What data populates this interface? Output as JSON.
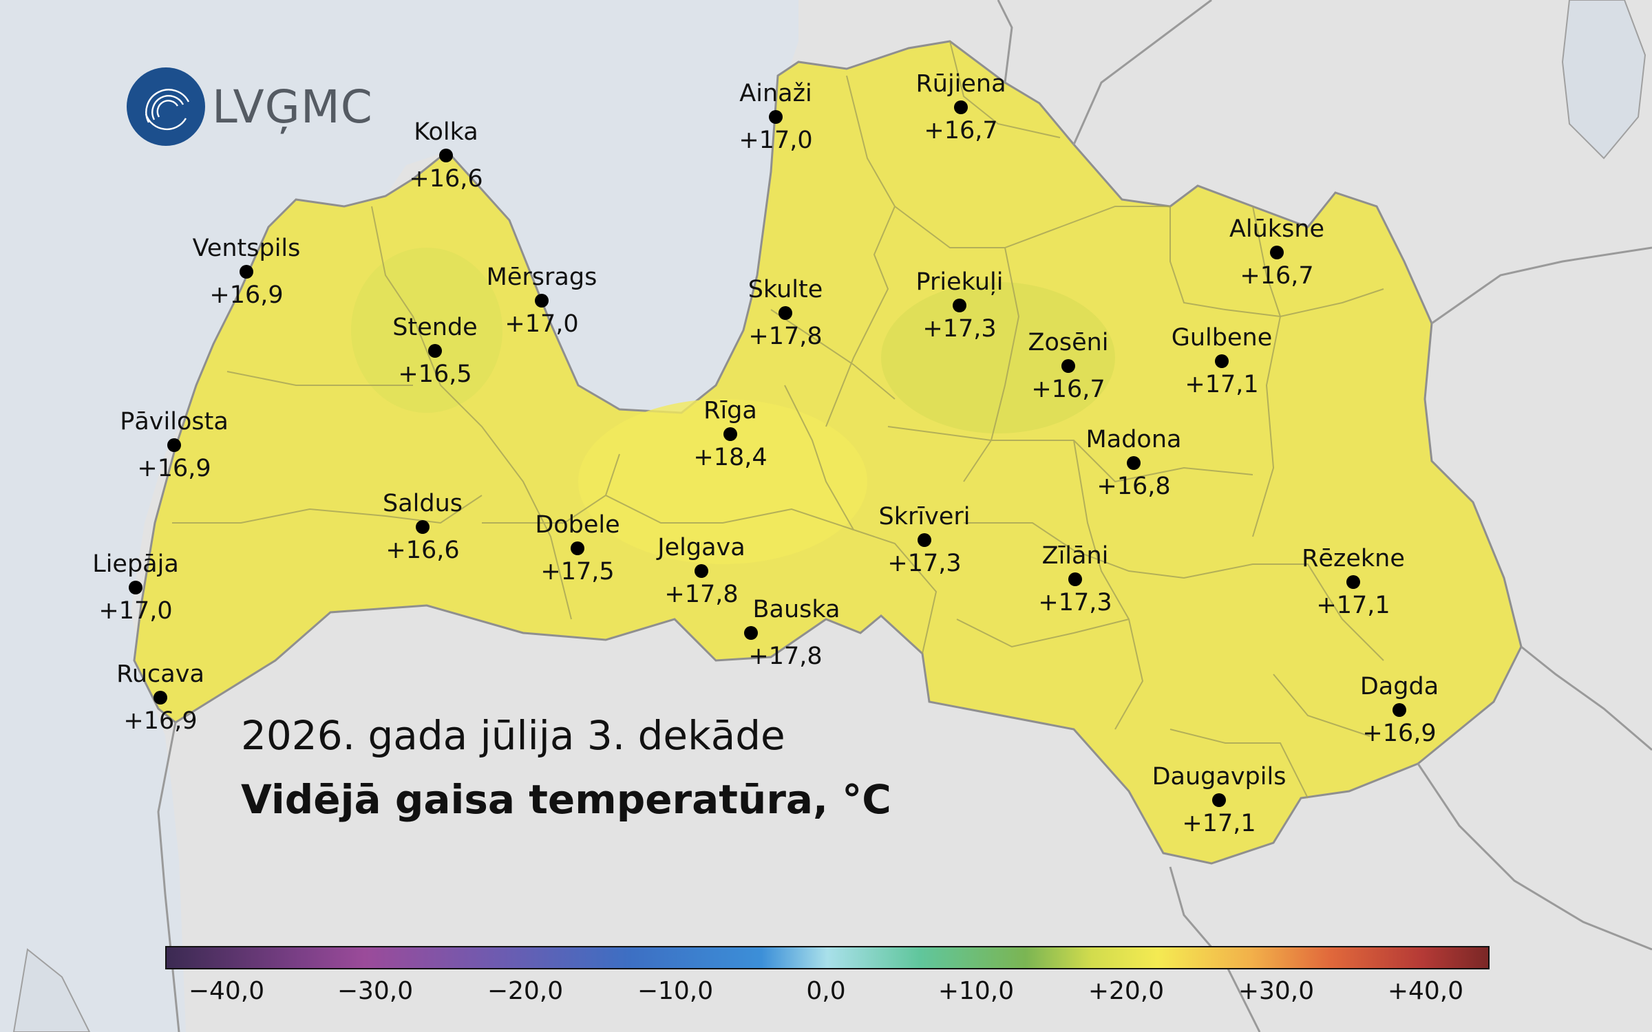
{
  "logo": {
    "text": "LVĢMC"
  },
  "map": {
    "date_text": "2026. gada jūlija 3. dekāde",
    "title": "Vidējā gaisa temperatūra, °C",
    "colors": {
      "water": "#dde3ea",
      "land_outside": "#e3e3e3",
      "latvia_fill": "#ece45e",
      "border": "#9a9a9a"
    }
  },
  "stations": [
    {
      "name": "Ainaži",
      "value": "+17,0"
    },
    {
      "name": "Rūjiena",
      "value": "+16,7"
    },
    {
      "name": "Kolka",
      "value": "+16,6"
    },
    {
      "name": "Ventspils",
      "value": "+16,9"
    },
    {
      "name": "Mērsrags",
      "value": "+17,0"
    },
    {
      "name": "Stende",
      "value": "+16,5"
    },
    {
      "name": "Skulte",
      "value": "+17,8"
    },
    {
      "name": "Priekuļi",
      "value": "+17,3"
    },
    {
      "name": "Alūksne",
      "value": "+16,7"
    },
    {
      "name": "Zosēni",
      "value": "+16,7"
    },
    {
      "name": "Gulbene",
      "value": "+17,1"
    },
    {
      "name": "Pāvilosta",
      "value": "+16,9"
    },
    {
      "name": "Rīga",
      "value": "+18,4"
    },
    {
      "name": "Madona",
      "value": "+16,8"
    },
    {
      "name": "Saldus",
      "value": "+16,6"
    },
    {
      "name": "Dobele",
      "value": "+17,5"
    },
    {
      "name": "Skrīveri",
      "value": "+17,3"
    },
    {
      "name": "Jelgava",
      "value": "+17,8"
    },
    {
      "name": "Zīlāni",
      "value": "+17,3"
    },
    {
      "name": "Rēzekne",
      "value": "+17,1"
    },
    {
      "name": "Liepāja",
      "value": "+17,0"
    },
    {
      "name": "Bauska",
      "value": "+17,8"
    },
    {
      "name": "Rucava",
      "value": "+16,9"
    },
    {
      "name": "Dagda",
      "value": "+16,9"
    },
    {
      "name": "Daugavpils",
      "value": "+17,1"
    }
  ],
  "legend": {
    "ticks": [
      "−40,0",
      "−30,0",
      "−20,0",
      "−10,0",
      "0,0",
      "+10,0",
      "+20,0",
      "+30,0",
      "+40,0"
    ]
  }
}
